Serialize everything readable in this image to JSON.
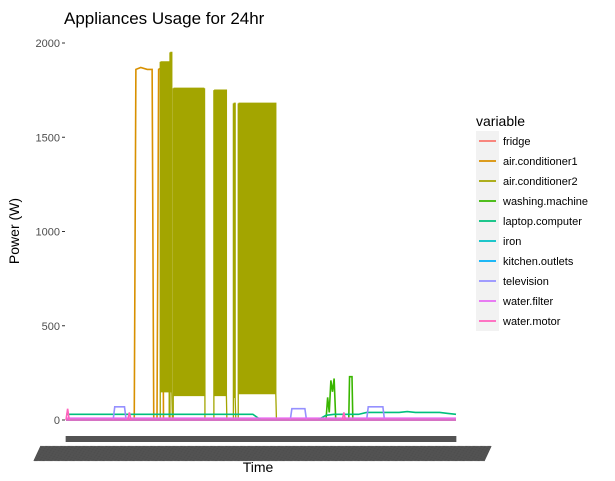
{
  "chart_data": {
    "type": "line",
    "title": "Appliances Usage for 24hr",
    "xlabel": "Time",
    "ylabel": "Power (W)",
    "ylim": [
      0,
      2000
    ],
    "y_ticks": [
      0,
      500,
      1000,
      1500,
      2000
    ],
    "x_ticks_note": "dense overlapping time labels, unreadable",
    "grid": false,
    "legend": {
      "title": "variable",
      "placement": "right"
    },
    "x": [
      0,
      0.5,
      1,
      1.5,
      2,
      2.5,
      3,
      3.5,
      4,
      4.5,
      5,
      5.5,
      6,
      6.5,
      7,
      7.5,
      8,
      8.5,
      9,
      9.5,
      10,
      10.5,
      11,
      11.5,
      12,
      12.5,
      13,
      13.5,
      14,
      14.5,
      15,
      15.5,
      16,
      16.5,
      17,
      17.5,
      18,
      18.5,
      19,
      19.5,
      20,
      20.5,
      21,
      21.5,
      22,
      22.5,
      23,
      23.5,
      24
    ],
    "series": [
      {
        "name": "fridge",
        "color": "#F8766D",
        "values": [
          5,
          5,
          5,
          5,
          5,
          5,
          5,
          5,
          5,
          5,
          5,
          5,
          5,
          5,
          5,
          5,
          5,
          5,
          5,
          5,
          5,
          5,
          5,
          5,
          5,
          5,
          5,
          5,
          5,
          5,
          5,
          5,
          5,
          5,
          5,
          5,
          5,
          5,
          5,
          5,
          5,
          5,
          5,
          5,
          5,
          5,
          5,
          5,
          5
        ]
      },
      {
        "name": "air.conditioner1",
        "color": "#D89000",
        "values": [
          0,
          0,
          0,
          0,
          0,
          0,
          0,
          0,
          0,
          0,
          0,
          0,
          0,
          0,
          0,
          0,
          0,
          0,
          0,
          0,
          0,
          0,
          0,
          0,
          0,
          0,
          0,
          0,
          0,
          0,
          0,
          0,
          0,
          0,
          0,
          0,
          0,
          0,
          0,
          0,
          0,
          0,
          0,
          0,
          0,
          0,
          0,
          0,
          0
        ],
        "segments": [
          {
            "x": [
              4.2,
              4.3,
              4.6,
              5.0,
              5.3,
              5.4
            ],
            "values": [
              0,
              1860,
              1870,
              1860,
              1860,
              0
            ]
          },
          {
            "x": [
              5.6,
              5.7,
              5.9,
              6.0
            ],
            "values": [
              0,
              1860,
              1870,
              0
            ]
          }
        ]
      },
      {
        "name": "air.conditioner2",
        "color": "#A3A500",
        "values": [
          0,
          0,
          0,
          0,
          0,
          0,
          0,
          0,
          0,
          0,
          0,
          0,
          0,
          0,
          0,
          0,
          0,
          0,
          0,
          0,
          0,
          0,
          0,
          0,
          0,
          0,
          0,
          0,
          0,
          0,
          0,
          0,
          0,
          0,
          0,
          0,
          0,
          0,
          0,
          0,
          0,
          0,
          0,
          0,
          0,
          0,
          0,
          0,
          0
        ],
        "blocks": [
          {
            "start": 5.8,
            "end": 6.35,
            "high": 1900,
            "low": 150
          },
          {
            "start": 6.4,
            "end": 6.55,
            "high": 1950,
            "low": 150
          },
          {
            "start": 6.6,
            "end": 8.55,
            "high": 1760,
            "low": 130
          },
          {
            "start": 9.1,
            "end": 9.9,
            "high": 1750,
            "low": 130
          },
          {
            "start": 10.3,
            "end": 10.45,
            "high": 1680,
            "low": 120
          },
          {
            "start": 10.6,
            "end": 12.95,
            "high": 1680,
            "low": 140
          }
        ]
      },
      {
        "name": "washing.machine",
        "color": "#39B600",
        "values": [
          0,
          0,
          0,
          0,
          0,
          0,
          0,
          0,
          0,
          0,
          0,
          0,
          0,
          0,
          0,
          0,
          0,
          0,
          0,
          0,
          0,
          0,
          0,
          0,
          0,
          0,
          0,
          0,
          0,
          0,
          0,
          0,
          0,
          0,
          0,
          0,
          0,
          0,
          0,
          0,
          0,
          0,
          0,
          0,
          0,
          0,
          0,
          0,
          0
        ],
        "segments": [
          {
            "x": [
              16.0,
              16.1,
              16.2,
              16.3,
              16.4,
              16.5,
              16.6
            ],
            "values": [
              0,
              120,
              40,
              210,
              150,
              220,
              0
            ]
          },
          {
            "x": [
              17.4,
              17.45,
              17.6,
              17.65
            ],
            "values": [
              0,
              230,
              230,
              0
            ]
          }
        ]
      },
      {
        "name": "laptop.computer",
        "color": "#00BF7D",
        "values": [
          30,
          30,
          30,
          30,
          30,
          30,
          30,
          30,
          30,
          30,
          30,
          30,
          30,
          30,
          30,
          30,
          30,
          30,
          30,
          30,
          30,
          30,
          30,
          30,
          0,
          0,
          0,
          0,
          0,
          0,
          0,
          0,
          25,
          30,
          30,
          30,
          30,
          40,
          40,
          40,
          40,
          40,
          45,
          40,
          40,
          40,
          40,
          35,
          30
        ]
      },
      {
        "name": "iron",
        "color": "#00BFC4",
        "values": [
          0,
          0,
          0,
          0,
          0,
          0,
          0,
          0,
          0,
          0,
          0,
          0,
          0,
          0,
          0,
          0,
          0,
          0,
          0,
          0,
          0,
          0,
          0,
          0,
          0,
          0,
          0,
          0,
          0,
          0,
          0,
          0,
          0,
          0,
          0,
          0,
          0,
          0,
          0,
          0,
          0,
          0,
          0,
          0,
          0,
          0,
          0,
          0,
          0
        ]
      },
      {
        "name": "kitchen.outlets",
        "color": "#00B0F6",
        "values": [
          0,
          0,
          0,
          0,
          0,
          0,
          0,
          0,
          0,
          0,
          0,
          0,
          0,
          0,
          0,
          0,
          0,
          0,
          0,
          0,
          0,
          0,
          0,
          0,
          0,
          0,
          0,
          0,
          0,
          0,
          0,
          0,
          0,
          0,
          0,
          0,
          0,
          0,
          0,
          0,
          0,
          0,
          0,
          0,
          0,
          0,
          0,
          0,
          0
        ]
      },
      {
        "name": "television",
        "color": "#9590FF",
        "values": [
          0,
          0,
          0,
          0,
          0,
          0,
          0,
          0,
          0,
          0,
          0,
          0,
          0,
          0,
          0,
          0,
          0,
          0,
          0,
          0,
          0,
          0,
          0,
          0,
          0,
          0,
          0,
          0,
          0,
          0,
          0,
          0,
          0,
          0,
          0,
          0,
          0,
          0,
          0,
          0,
          0,
          0,
          0,
          0,
          0,
          0,
          0,
          0,
          0
        ],
        "segments": [
          {
            "x": [
              2.9,
              3.0,
              3.6,
              3.7
            ],
            "values": [
              0,
              70,
              70,
              0
            ]
          },
          {
            "x": [
              13.8,
              13.9,
              14.7,
              14.8
            ],
            "values": [
              0,
              60,
              60,
              0
            ]
          },
          {
            "x": [
              18.5,
              18.6,
              19.5,
              19.6
            ],
            "values": [
              0,
              70,
              70,
              0
            ]
          }
        ]
      },
      {
        "name": "water.filter",
        "color": "#E76BF3",
        "values": [
          10,
          10,
          10,
          10,
          10,
          10,
          10,
          10,
          10,
          10,
          10,
          10,
          10,
          10,
          10,
          10,
          10,
          10,
          10,
          10,
          10,
          10,
          10,
          10,
          10,
          10,
          10,
          10,
          10,
          10,
          10,
          10,
          10,
          10,
          10,
          10,
          10,
          10,
          10,
          10,
          10,
          10,
          10,
          10,
          10,
          10,
          10,
          10,
          10
        ]
      },
      {
        "name": "water.motor",
        "color": "#FF62BC",
        "values": [
          0,
          0,
          0,
          0,
          0,
          0,
          0,
          0,
          0,
          0,
          0,
          0,
          0,
          0,
          0,
          0,
          0,
          0,
          0,
          0,
          0,
          0,
          0,
          0,
          0,
          0,
          0,
          0,
          0,
          0,
          0,
          0,
          0,
          0,
          0,
          0,
          0,
          0,
          0,
          0,
          0,
          0,
          0,
          0,
          0,
          0,
          0,
          0,
          0
        ],
        "segments": [
          {
            "x": [
              0.0,
              0.1,
              0.2
            ],
            "values": [
              0,
              60,
              0
            ]
          },
          {
            "x": [
              3.8,
              3.9,
              4.0
            ],
            "values": [
              0,
              40,
              0
            ]
          },
          {
            "x": [
              17.0,
              17.1,
              17.2
            ],
            "values": [
              0,
              40,
              0
            ]
          }
        ]
      }
    ]
  }
}
